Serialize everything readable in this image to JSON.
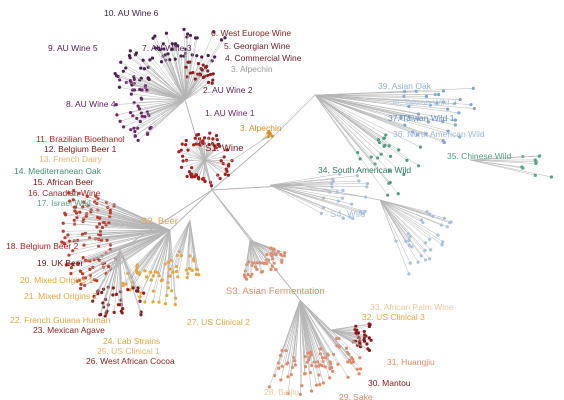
{
  "labels": [
    "10. AU Wine 6",
    "9. AU Wine 5",
    "7. AU Wine 3",
    "6. West Europe Wine",
    "5. Georgian Wine",
    "4. Commercial Wine",
    "3. Alpechin",
    "2. AU Wine 2",
    "8. AU Wine 4",
    "1. AU Wine 1",
    "3. Alpechin",
    "11. Brazilian Bioethanol",
    "12. Belgium Beer 1",
    "S1. Wine",
    "13. French Dairy",
    "14. Mediterranean Oak",
    "15. African Beer",
    "16. Canadian Wine",
    "17. Israel Wild",
    "39. Asian Oak",
    "38. Taiwan Wild 2",
    "37. Taiwan Wild 1",
    "36. North American Wild",
    "35. Chinese Wild",
    "34. South American Wild",
    "S4. Wild",
    "S2. Beer",
    "18. Belgium Beer 2",
    "19. UK Beer",
    "20. Mixed Origins 1",
    "21. Mixed Origins 2",
    "S3. Asian Fermentation",
    "33. African Palm Wine",
    "32. US Clinical 3",
    "22. French Guiana Human",
    "23. Mexican Agave",
    "27. US Clinical 2",
    "24. Lab Strains",
    "25. US Clinical 1",
    "26. West African Cocoa",
    "31. Huangjiu",
    "30. Mantou",
    "28. Baijiu",
    "29. Sake"
  ]
}
